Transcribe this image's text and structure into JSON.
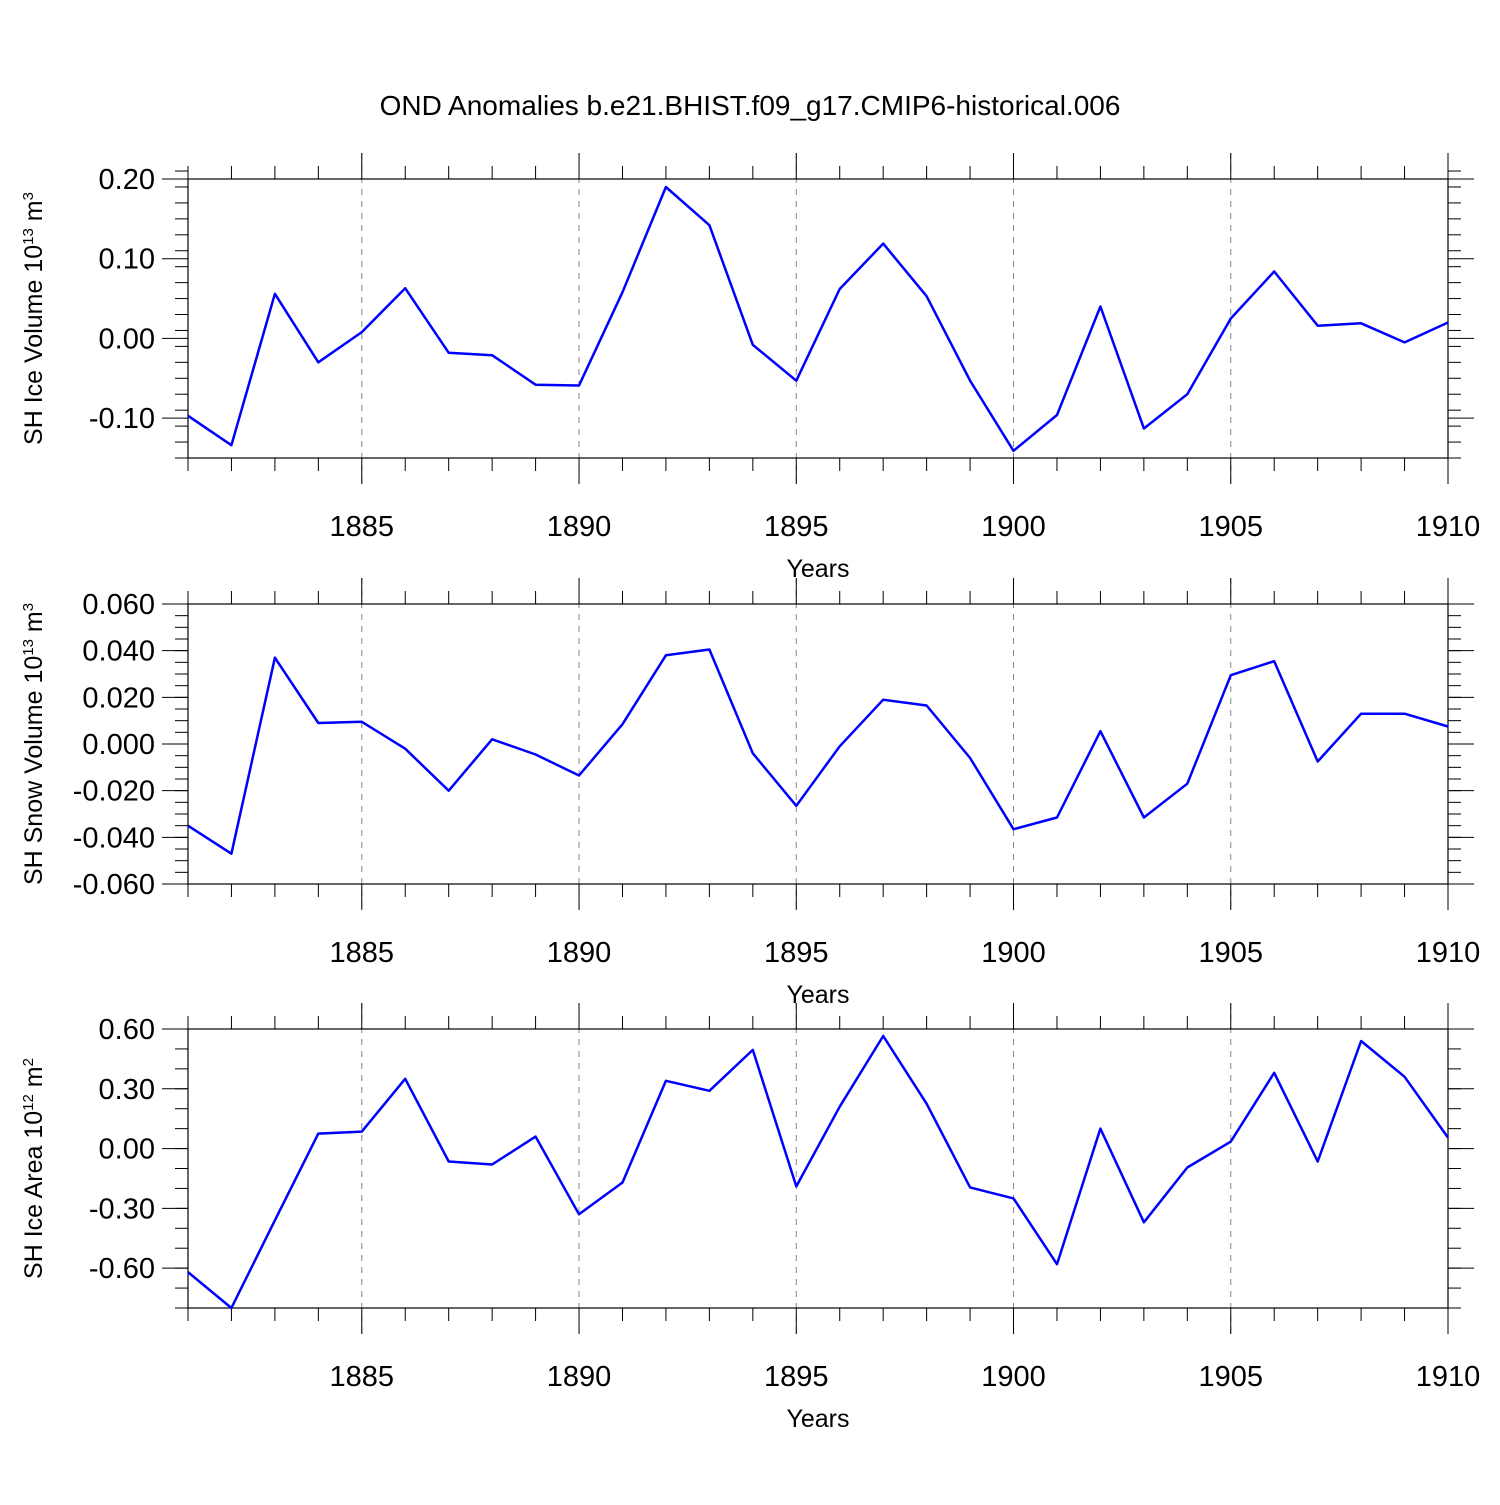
{
  "figure": {
    "title": "OND Anomalies b.e21.BHIST.f09_g17.CMIP6-historical.006"
  },
  "colors": {
    "series": "#0000ff",
    "axis": "#000000",
    "grid": "#888888"
  },
  "chart_data": [
    {
      "type": "line",
      "name": "ice-volume",
      "ylabel_main": "SH Ice Volume 10",
      "ylabel_exp": "13",
      "ylabel_unit": " m",
      "ylabel_unit_exp": "3",
      "xlabel": "Years",
      "xlim": [
        1881,
        1910
      ],
      "ylim": [
        -0.15,
        0.2
      ],
      "yticks": [
        0.2,
        0.1,
        0.0,
        -0.1
      ],
      "ytick_labels": [
        "0.20",
        "0.10",
        "0.00",
        "-0.10"
      ],
      "yminor_step": 0.02,
      "xticks": [
        1885,
        1890,
        1895,
        1900,
        1905,
        1910
      ],
      "xtick_labels": [
        "1885",
        "1890",
        "1895",
        "1900",
        "1905",
        "1910"
      ],
      "grid_x": [
        1885,
        1890,
        1895,
        1900,
        1905
      ],
      "x": [
        1881,
        1882,
        1883,
        1884,
        1885,
        1886,
        1887,
        1888,
        1889,
        1890,
        1891,
        1892,
        1893,
        1894,
        1895,
        1896,
        1897,
        1898,
        1899,
        1900,
        1901,
        1902,
        1903,
        1904,
        1905,
        1906,
        1907,
        1908,
        1909,
        1910
      ],
      "values": [
        -0.097,
        -0.134,
        0.056,
        -0.03,
        0.008,
        0.063,
        -0.018,
        -0.021,
        -0.058,
        -0.059,
        0.058,
        0.19,
        0.142,
        -0.008,
        -0.053,
        0.062,
        0.119,
        0.053,
        -0.053,
        -0.141,
        -0.096,
        0.04,
        -0.113,
        -0.07,
        0.025,
        0.084,
        0.016,
        0.019,
        -0.005,
        0.02
      ]
    },
    {
      "type": "line",
      "name": "snow-volume",
      "ylabel_main": "SH Snow Volume 10",
      "ylabel_exp": "13",
      "ylabel_unit": " m",
      "ylabel_unit_exp": "3",
      "xlabel": "Years",
      "xlim": [
        1881,
        1910
      ],
      "ylim": [
        -0.06,
        0.06
      ],
      "yticks": [
        0.06,
        0.04,
        0.02,
        0.0,
        -0.02,
        -0.04,
        -0.06
      ],
      "ytick_labels": [
        "0.060",
        "0.040",
        "0.020",
        "0.000",
        "-0.020",
        "-0.040",
        "-0.060"
      ],
      "yminor_step": 0.005,
      "xticks": [
        1885,
        1890,
        1895,
        1900,
        1905,
        1910
      ],
      "xtick_labels": [
        "1885",
        "1890",
        "1895",
        "1900",
        "1905",
        "1910"
      ],
      "grid_x": [
        1885,
        1890,
        1895,
        1900,
        1905
      ],
      "x": [
        1881,
        1882,
        1883,
        1884,
        1885,
        1886,
        1887,
        1888,
        1889,
        1890,
        1891,
        1892,
        1893,
        1894,
        1895,
        1896,
        1897,
        1898,
        1899,
        1900,
        1901,
        1902,
        1903,
        1904,
        1905,
        1906,
        1907,
        1908,
        1909,
        1910
      ],
      "values": [
        -0.035,
        -0.047,
        0.037,
        0.009,
        0.0095,
        -0.002,
        -0.02,
        0.002,
        -0.0045,
        -0.0135,
        0.0085,
        0.038,
        0.0405,
        -0.004,
        -0.0265,
        -0.001,
        0.019,
        0.0165,
        -0.006,
        -0.0365,
        -0.0315,
        0.0055,
        -0.0315,
        -0.017,
        0.0295,
        0.0355,
        -0.0075,
        0.013,
        0.013,
        0.0075
      ]
    },
    {
      "type": "line",
      "name": "ice-area",
      "ylabel_main": "SH Ice Area 10",
      "ylabel_exp": "12",
      "ylabel_unit": " m",
      "ylabel_unit_exp": "2",
      "xlabel": "Years",
      "xlim": [
        1881,
        1910
      ],
      "ylim": [
        -0.8,
        0.6
      ],
      "yticks": [
        0.6,
        0.3,
        0.0,
        -0.3,
        -0.6
      ],
      "ytick_labels": [
        "0.60",
        "0.30",
        "0.00",
        "-0.30",
        "-0.60"
      ],
      "yminor_step": 0.1,
      "xticks": [
        1885,
        1890,
        1895,
        1900,
        1905,
        1910
      ],
      "xtick_labels": [
        "1885",
        "1890",
        "1895",
        "1900",
        "1905",
        "1910"
      ],
      "grid_x": [
        1885,
        1890,
        1895,
        1900,
        1905
      ],
      "x": [
        1881,
        1882,
        1883,
        1884,
        1885,
        1886,
        1887,
        1888,
        1889,
        1890,
        1891,
        1892,
        1893,
        1894,
        1895,
        1896,
        1897,
        1898,
        1899,
        1900,
        1901,
        1902,
        1903,
        1904,
        1905,
        1906,
        1907,
        1908,
        1909,
        1910
      ],
      "values": [
        -0.62,
        -0.8,
        -0.36,
        0.075,
        0.085,
        0.35,
        -0.065,
        -0.08,
        0.06,
        -0.33,
        -0.17,
        0.34,
        0.29,
        0.495,
        -0.19,
        0.21,
        0.565,
        0.225,
        -0.195,
        -0.25,
        -0.58,
        0.1,
        -0.37,
        -0.095,
        0.035,
        0.38,
        -0.065,
        0.54,
        0.36,
        0.055
      ]
    }
  ]
}
